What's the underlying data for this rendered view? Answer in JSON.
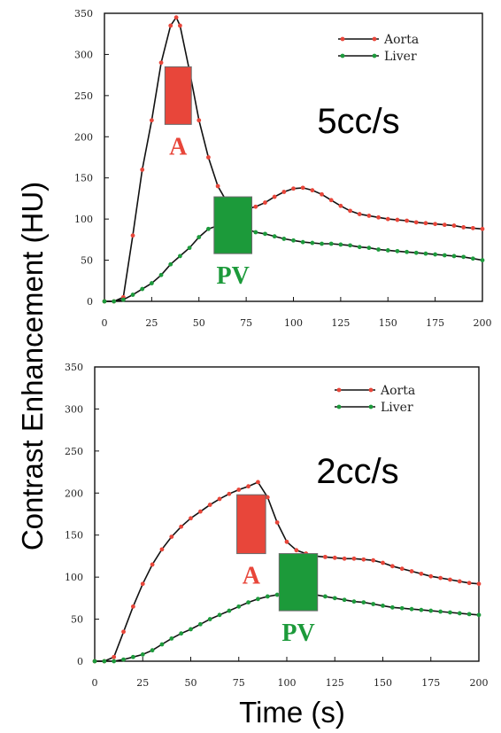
{
  "figure": {
    "ylabel": "Contrast Enhancement (HU)",
    "xlabel": "Time (s)"
  },
  "chart_data": [
    {
      "type": "line",
      "annotation": "5cc/s",
      "xlim": [
        0,
        200
      ],
      "ylim": [
        0,
        350
      ],
      "xticks": [
        "0",
        "25",
        "50",
        "75",
        "100",
        "125",
        "150",
        "175",
        "200"
      ],
      "yticks": [
        "0",
        "50",
        "100",
        "150",
        "200",
        "250",
        "300",
        "350"
      ],
      "legend_position": "top-right",
      "series": [
        {
          "name": "Aorta",
          "line_color": "#111111",
          "marker_color": "#e8463a",
          "x": [
            0,
            5,
            10,
            15,
            20,
            25,
            30,
            35,
            38,
            40,
            45,
            50,
            55,
            60,
            65,
            70,
            75,
            80,
            85,
            90,
            95,
            100,
            105,
            110,
            115,
            120,
            125,
            130,
            135,
            140,
            145,
            150,
            155,
            160,
            165,
            170,
            175,
            180,
            185,
            190,
            195,
            200
          ],
          "y": [
            0,
            0,
            5,
            80,
            160,
            220,
            290,
            335,
            345,
            335,
            280,
            220,
            175,
            140,
            120,
            113,
            112,
            115,
            120,
            127,
            133,
            137,
            138,
            135,
            130,
            123,
            116,
            110,
            106,
            104,
            102,
            100,
            99,
            98,
            96,
            95,
            94,
            93,
            92,
            90,
            89,
            88
          ]
        },
        {
          "name": "Liver",
          "line_color": "#111111",
          "marker_color": "#1d9a3c",
          "x": [
            0,
            5,
            10,
            15,
            20,
            25,
            30,
            35,
            40,
            45,
            50,
            55,
            60,
            65,
            70,
            75,
            80,
            85,
            90,
            95,
            100,
            105,
            110,
            115,
            120,
            125,
            130,
            135,
            140,
            145,
            150,
            155,
            160,
            165,
            170,
            175,
            180,
            185,
            190,
            195,
            200
          ],
          "y": [
            0,
            0,
            2,
            8,
            15,
            22,
            32,
            45,
            55,
            65,
            78,
            88,
            92,
            95,
            92,
            88,
            84,
            82,
            79,
            76,
            74,
            72,
            71,
            70,
            70,
            69,
            68,
            66,
            65,
            63,
            62,
            61,
            60,
            59,
            58,
            57,
            56,
            55,
            54,
            52,
            50
          ]
        }
      ],
      "phase_boxes": [
        {
          "label": "A",
          "color": "#e8463a",
          "x": [
            32,
            46
          ],
          "y": [
            215,
            285
          ]
        },
        {
          "label": "PV",
          "color": "#1c9a3a",
          "x": [
            58,
            78
          ],
          "y": [
            58,
            127
          ]
        }
      ]
    },
    {
      "type": "line",
      "annotation": "2cc/s",
      "xlim": [
        0,
        200
      ],
      "ylim": [
        0,
        350
      ],
      "xticks": [
        "0",
        "25",
        "50",
        "75",
        "100",
        "125",
        "150",
        "175",
        "200"
      ],
      "yticks": [
        "0",
        "50",
        "100",
        "150",
        "200",
        "250",
        "300",
        "350"
      ],
      "legend_position": "top-right",
      "series": [
        {
          "name": "Aorta",
          "line_color": "#111111",
          "marker_color": "#e8463a",
          "x": [
            0,
            5,
            10,
            15,
            20,
            25,
            30,
            35,
            40,
            45,
            50,
            55,
            60,
            65,
            70,
            75,
            80,
            85,
            90,
            95,
            100,
            105,
            110,
            115,
            120,
            125,
            130,
            135,
            140,
            145,
            150,
            155,
            160,
            165,
            170,
            175,
            180,
            185,
            190,
            195,
            200
          ],
          "y": [
            0,
            0,
            5,
            35,
            65,
            92,
            115,
            133,
            148,
            160,
            170,
            178,
            186,
            193,
            199,
            204,
            208,
            213,
            195,
            165,
            142,
            132,
            128,
            125,
            124,
            123,
            122,
            122,
            121,
            120,
            117,
            113,
            110,
            107,
            104,
            101,
            99,
            97,
            95,
            93,
            92
          ]
        },
        {
          "name": "Liver",
          "line_color": "#111111",
          "marker_color": "#1d9a3c",
          "x": [
            0,
            5,
            10,
            15,
            20,
            25,
            30,
            35,
            40,
            45,
            50,
            55,
            60,
            65,
            70,
            75,
            80,
            85,
            90,
            95,
            100,
            105,
            110,
            115,
            120,
            125,
            130,
            135,
            140,
            145,
            150,
            155,
            160,
            165,
            170,
            175,
            180,
            185,
            190,
            195,
            200
          ],
          "y": [
            0,
            0,
            0,
            2,
            5,
            8,
            13,
            20,
            27,
            33,
            38,
            44,
            50,
            55,
            60,
            65,
            70,
            74,
            77,
            79,
            80,
            80,
            80,
            79,
            77,
            75,
            73,
            71,
            70,
            68,
            66,
            64,
            63,
            62,
            61,
            60,
            59,
            58,
            57,
            56,
            55
          ]
        }
      ],
      "phase_boxes": [
        {
          "label": "A",
          "color": "#e8463a",
          "x": [
            74,
            89
          ],
          "y": [
            128,
            198
          ]
        },
        {
          "label": "PV",
          "color": "#1c9a3a",
          "x": [
            96,
            116
          ],
          "y": [
            60,
            128
          ]
        }
      ]
    }
  ]
}
